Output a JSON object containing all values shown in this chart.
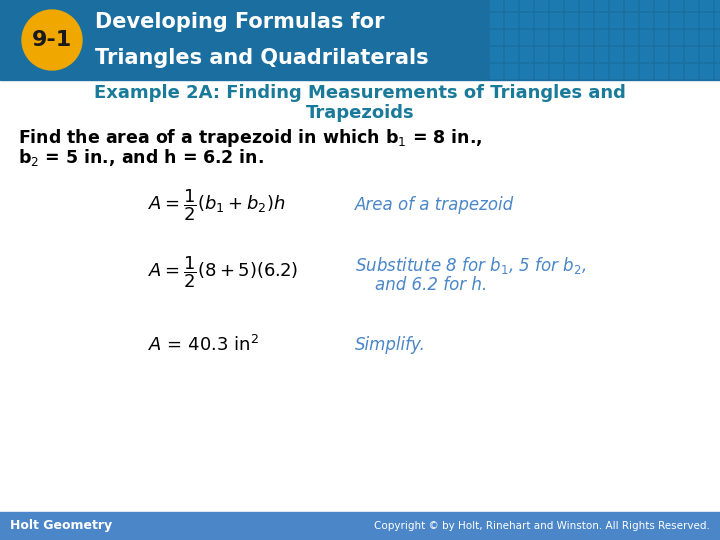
{
  "header_bg_color": "#1a6fa0",
  "header_text_color": "#ffffff",
  "header_line1": "Developing Formulas for",
  "header_line2": "Triangles and Quadrilaterals",
  "badge_bg_color": "#f0a800",
  "badge_text": "9-1",
  "example_title_color": "#1a7a9a",
  "body_bg_color": "#ffffff",
  "problem_text_color": "#000000",
  "formula_color": "#000000",
  "annotation_color": "#4a86c8",
  "footer_bg_color": "#4a86c8",
  "footer_left": "Holt Geometry",
  "footer_right": "Copyright © by Holt, Rinehart and Winston. All Rights Reserved.",
  "footer_text_color": "#ffffff",
  "grid_color": "#1e7db5"
}
